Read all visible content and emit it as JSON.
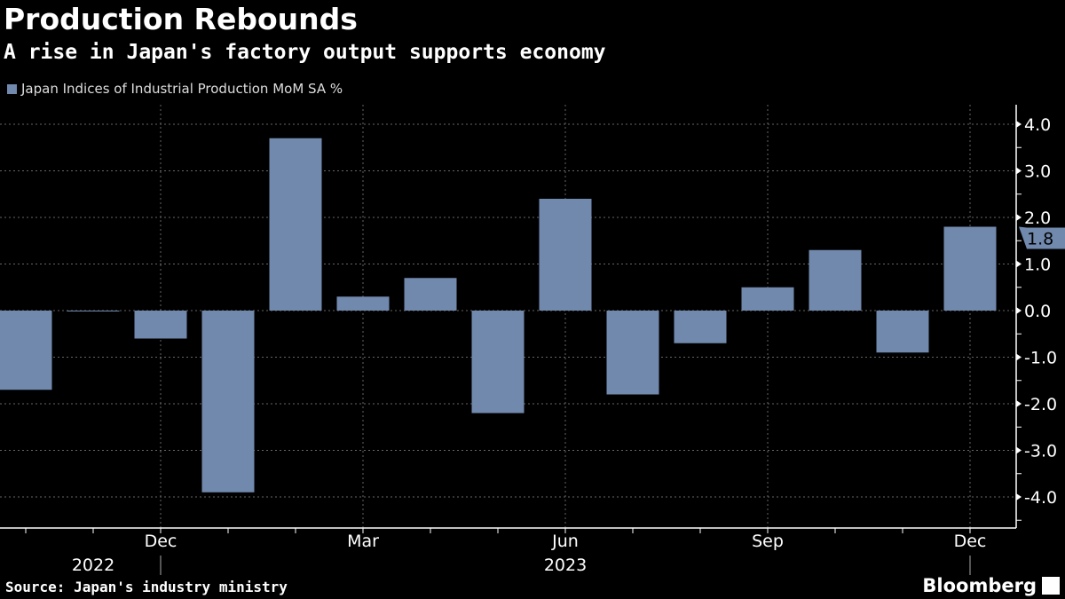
{
  "title": "Production Rebounds",
  "subtitle": "A rise in Japan's factory output supports economy",
  "source": "Source: Japan's industry ministry",
  "brand": "Bloomberg",
  "colors": {
    "bar": "#7189ad",
    "background": "#000000"
  },
  "chart_data": {
    "type": "bar",
    "categories": [
      "Oct 2022",
      "Nov 2022",
      "Dec 2022",
      "Jan 2023",
      "Feb 2023",
      "Mar 2023",
      "Apr 2023",
      "May 2023",
      "Jun 2023",
      "Jul 2023",
      "Aug 2023",
      "Sep 2023",
      "Oct 2023",
      "Nov 2023",
      "Dec 2023"
    ],
    "series": [
      {
        "name": "Japan Indices of Industrial Production MoM SA %",
        "values": [
          -1.7,
          0.0,
          -0.6,
          -3.9,
          3.7,
          0.3,
          0.7,
          -2.2,
          2.4,
          -1.8,
          -0.7,
          0.5,
          1.3,
          -0.9,
          1.8
        ]
      }
    ],
    "ylim": [
      -4.6,
      4.4
    ],
    "yticks": [
      4.0,
      3.0,
      2.0,
      1.0,
      0.0,
      -1.0,
      -2.0,
      -3.0,
      -4.0
    ],
    "ytick_labels": [
      "4.0",
      "3.0",
      "2.0",
      "1.0",
      "0.0",
      "-1.0",
      "-2.0",
      "-3.0",
      "-4.0"
    ],
    "xtick_labels": [
      {
        "index": 2,
        "label": "Dec"
      },
      {
        "index": 5,
        "label": "Mar"
      },
      {
        "index": 8,
        "label": "Jun"
      },
      {
        "index": 11,
        "label": "Sep"
      },
      {
        "index": 14,
        "label": "Dec"
      }
    ],
    "year_labels": [
      {
        "index": 1,
        "label": "2022"
      },
      {
        "index": 8,
        "label": "2023"
      }
    ],
    "last_value_label": "1.8",
    "y_axis_side": "right",
    "grid": true
  }
}
